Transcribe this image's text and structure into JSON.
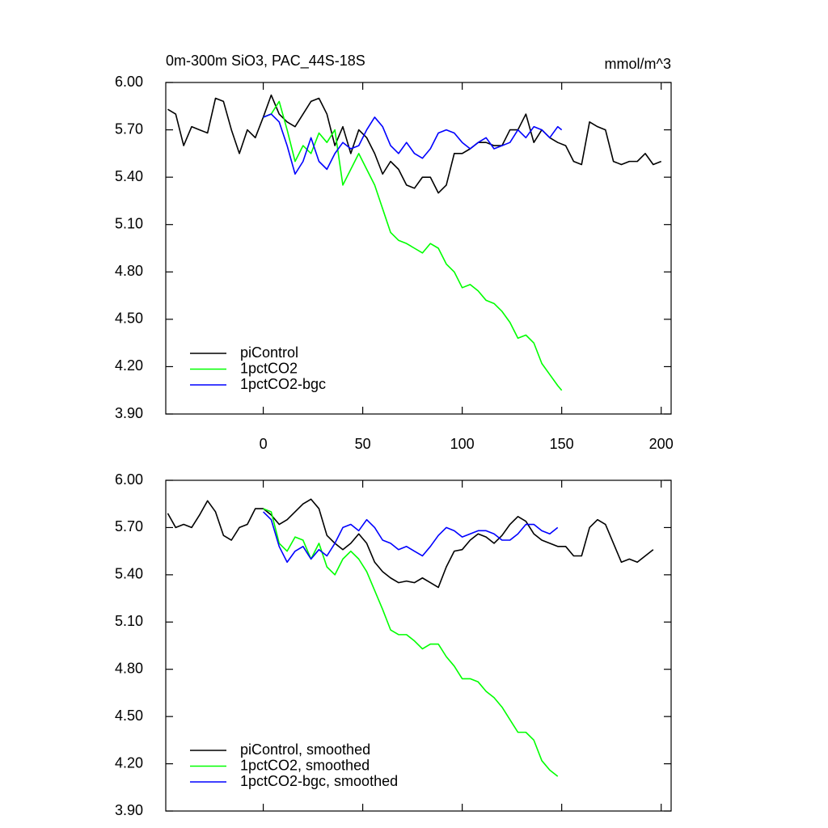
{
  "chart_data": [
    {
      "type": "line",
      "title": "0m-300m SiO3, PAC_44S-18S",
      "units": "mmol/m^3",
      "xlim": [
        -49,
        205
      ],
      "xticks": [
        0,
        50,
        100,
        150,
        200
      ],
      "show_xtick_labels": true,
      "ylim": [
        3.9,
        6.0
      ],
      "yticks": [
        {
          "value": 3.9,
          "label": "3.90"
        },
        {
          "value": 4.2,
          "label": "4.20"
        },
        {
          "value": 4.5,
          "label": "4.50"
        },
        {
          "value": 4.8,
          "label": "4.80"
        },
        {
          "value": 5.1,
          "label": "5.10"
        },
        {
          "value": 5.4,
          "label": "5.40"
        },
        {
          "value": 5.7,
          "label": "5.70"
        },
        {
          "value": 6.0,
          "label": "6.00"
        }
      ],
      "legend": "lower left",
      "series": [
        {
          "name": "piControl",
          "color": "#000000",
          "x": [
            -48,
            -44,
            -40,
            -36,
            -32,
            -28,
            -24,
            -20,
            -16,
            -12,
            -8,
            -4,
            0,
            4,
            8,
            12,
            16,
            20,
            24,
            28,
            32,
            36,
            40,
            44,
            48,
            52,
            56,
            60,
            64,
            68,
            72,
            76,
            80,
            84,
            88,
            92,
            96,
            100,
            104,
            108,
            112,
            116,
            120,
            124,
            128,
            132,
            136,
            140,
            144,
            148,
            152,
            156,
            160,
            164,
            168,
            172,
            176,
            180,
            184,
            188,
            192,
            196,
            200
          ],
          "values": [
            5.83,
            5.8,
            5.6,
            5.72,
            5.7,
            5.68,
            5.9,
            5.88,
            5.7,
            5.55,
            5.7,
            5.65,
            5.78,
            5.92,
            5.8,
            5.75,
            5.72,
            5.8,
            5.88,
            5.9,
            5.8,
            5.6,
            5.72,
            5.55,
            5.7,
            5.65,
            5.55,
            5.42,
            5.5,
            5.45,
            5.35,
            5.33,
            5.4,
            5.4,
            5.3,
            5.35,
            5.55,
            5.55,
            5.58,
            5.62,
            5.62,
            5.6,
            5.6,
            5.7,
            5.7,
            5.8,
            5.62,
            5.7,
            5.65,
            5.62,
            5.6,
            5.5,
            5.48,
            5.75,
            5.72,
            5.7,
            5.5,
            5.48,
            5.5,
            5.5,
            5.55,
            5.48,
            5.5
          ]
        },
        {
          "name": "1pctCO2",
          "color": "#00ff00",
          "x": [
            0,
            4,
            8,
            12,
            16,
            20,
            24,
            28,
            32,
            36,
            40,
            44,
            48,
            52,
            56,
            60,
            64,
            68,
            72,
            76,
            80,
            84,
            88,
            92,
            96,
            100,
            104,
            108,
            112,
            116,
            120,
            124,
            128,
            132,
            136,
            140,
            144,
            148,
            150
          ],
          "values": [
            5.78,
            5.8,
            5.88,
            5.7,
            5.5,
            5.6,
            5.55,
            5.68,
            5.62,
            5.7,
            5.35,
            5.45,
            5.55,
            5.45,
            5.35,
            5.2,
            5.05,
            5.0,
            4.98,
            4.95,
            4.92,
            4.98,
            4.95,
            4.85,
            4.8,
            4.7,
            4.72,
            4.68,
            4.62,
            4.6,
            4.55,
            4.48,
            4.38,
            4.4,
            4.35,
            4.22,
            4.15,
            4.08,
            4.05
          ]
        },
        {
          "name": "1pctCO2-bgc",
          "color": "#0000ff",
          "x": [
            0,
            4,
            8,
            12,
            16,
            20,
            24,
            28,
            32,
            36,
            40,
            44,
            48,
            52,
            56,
            60,
            64,
            68,
            72,
            76,
            80,
            84,
            88,
            92,
            96,
            100,
            104,
            108,
            112,
            116,
            120,
            124,
            128,
            132,
            136,
            140,
            144,
            148,
            150
          ],
          "values": [
            5.78,
            5.8,
            5.75,
            5.6,
            5.42,
            5.5,
            5.65,
            5.5,
            5.45,
            5.55,
            5.62,
            5.58,
            5.6,
            5.7,
            5.78,
            5.72,
            5.6,
            5.55,
            5.62,
            5.55,
            5.52,
            5.58,
            5.68,
            5.7,
            5.68,
            5.62,
            5.58,
            5.62,
            5.65,
            5.58,
            5.6,
            5.62,
            5.7,
            5.65,
            5.72,
            5.7,
            5.65,
            5.72,
            5.7
          ]
        }
      ]
    },
    {
      "type": "line",
      "xlim": [
        -49,
        205
      ],
      "xticks": [
        0,
        50,
        100,
        150,
        200
      ],
      "show_xtick_labels": false,
      "ylim": [
        3.9,
        6.0
      ],
      "yticks": [
        {
          "value": 3.9,
          "label": "3.90"
        },
        {
          "value": 4.2,
          "label": "4.20"
        },
        {
          "value": 4.5,
          "label": "4.50"
        },
        {
          "value": 4.8,
          "label": "4.80"
        },
        {
          "value": 5.1,
          "label": "5.10"
        },
        {
          "value": 5.4,
          "label": "5.40"
        },
        {
          "value": 5.7,
          "label": "5.70"
        },
        {
          "value": 6.0,
          "label": "6.00"
        }
      ],
      "legend": "lower left",
      "series": [
        {
          "name": "piControl, smoothed",
          "color": "#000000",
          "x": [
            -48,
            -44,
            -40,
            -36,
            -32,
            -28,
            -24,
            -20,
            -16,
            -12,
            -8,
            -4,
            0,
            4,
            8,
            12,
            16,
            20,
            24,
            28,
            32,
            36,
            40,
            44,
            48,
            52,
            56,
            60,
            64,
            68,
            72,
            76,
            80,
            84,
            88,
            92,
            96,
            100,
            104,
            108,
            112,
            116,
            120,
            124,
            128,
            132,
            136,
            140,
            144,
            148,
            152,
            156,
            160,
            164,
            168,
            172,
            176,
            180,
            184,
            188,
            192,
            196
          ],
          "values": [
            5.79,
            5.7,
            5.72,
            5.7,
            5.78,
            5.87,
            5.8,
            5.65,
            5.62,
            5.7,
            5.72,
            5.82,
            5.82,
            5.78,
            5.72,
            5.75,
            5.8,
            5.85,
            5.88,
            5.82,
            5.65,
            5.6,
            5.56,
            5.6,
            5.66,
            5.6,
            5.48,
            5.42,
            5.38,
            5.35,
            5.36,
            5.35,
            5.38,
            5.35,
            5.32,
            5.45,
            5.55,
            5.56,
            5.62,
            5.66,
            5.64,
            5.6,
            5.65,
            5.72,
            5.77,
            5.74,
            5.66,
            5.62,
            5.6,
            5.58,
            5.58,
            5.52,
            5.52,
            5.7,
            5.75,
            5.72,
            5.6,
            5.48,
            5.5,
            5.48,
            5.52,
            5.56
          ]
        },
        {
          "name": "1pctCO2, smoothed",
          "color": "#00ff00",
          "x": [
            0,
            4,
            8,
            12,
            16,
            20,
            24,
            28,
            32,
            36,
            40,
            44,
            48,
            52,
            56,
            60,
            64,
            68,
            72,
            76,
            80,
            84,
            88,
            92,
            96,
            100,
            104,
            108,
            112,
            116,
            120,
            124,
            128,
            132,
            136,
            140,
            144,
            148
          ],
          "values": [
            5.82,
            5.8,
            5.6,
            5.55,
            5.64,
            5.62,
            5.5,
            5.6,
            5.45,
            5.4,
            5.5,
            5.55,
            5.5,
            5.42,
            5.3,
            5.18,
            5.05,
            5.02,
            5.02,
            4.98,
            4.93,
            4.96,
            4.96,
            4.88,
            4.82,
            4.74,
            4.74,
            4.72,
            4.66,
            4.62,
            4.56,
            4.48,
            4.4,
            4.4,
            4.35,
            4.22,
            4.16,
            4.12
          ]
        },
        {
          "name": "1pctCO2-bgc, smoothed",
          "color": "#0000ff",
          "x": [
            0,
            4,
            8,
            12,
            16,
            20,
            24,
            28,
            32,
            36,
            40,
            44,
            48,
            52,
            56,
            60,
            64,
            68,
            72,
            76,
            80,
            84,
            88,
            92,
            96,
            100,
            104,
            108,
            112,
            116,
            120,
            124,
            128,
            132,
            136,
            140,
            144,
            148
          ],
          "values": [
            5.8,
            5.75,
            5.58,
            5.48,
            5.55,
            5.58,
            5.5,
            5.56,
            5.52,
            5.6,
            5.7,
            5.72,
            5.68,
            5.75,
            5.7,
            5.62,
            5.6,
            5.56,
            5.58,
            5.55,
            5.52,
            5.58,
            5.65,
            5.7,
            5.68,
            5.64,
            5.66,
            5.68,
            5.68,
            5.66,
            5.62,
            5.62,
            5.66,
            5.72,
            5.72,
            5.68,
            5.66,
            5.7
          ]
        }
      ]
    }
  ]
}
